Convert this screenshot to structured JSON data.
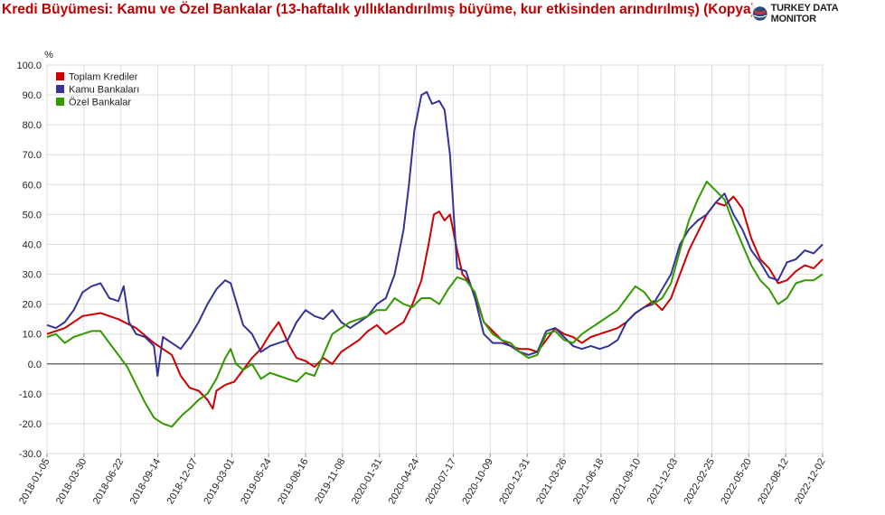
{
  "title": "Kredi Büyümesi: Kamu ve Özel Bankalar (13-haftalık yıllıklandırılmış büyüme, kur etkisinden arındırılmış) (Kopya)",
  "logo_text": "TURKEY DATA MONITOR",
  "logo_icon": "globe-logo-icon",
  "colors": {
    "toplam": "#cc0000",
    "kamu": "#333399",
    "ozel": "#339900"
  },
  "chart_data": {
    "type": "line",
    "ylabel": "%",
    "ylim": [
      -30,
      100
    ],
    "yticks": [
      "100.0",
      "90.0",
      "80.0",
      "70.0",
      "60.0",
      "50.0",
      "40.0",
      "30.0",
      "20.0",
      "10.0",
      "0.0",
      "-10.0",
      "-20.0",
      "-30.0"
    ],
    "xlabels": [
      "2018-01-05",
      "2018-03-30",
      "2018-06-22",
      "2018-09-14",
      "2018-12-07",
      "2019-03-01",
      "2019-05-24",
      "2019-08-16",
      "2019-11-08",
      "2020-01-31",
      "2020-04-24",
      "2020-07-17",
      "2020-10-09",
      "2020-12-31",
      "2021-03-26",
      "2021-06-18",
      "2021-09-10",
      "2021-12-03",
      "2022-02-25",
      "2022-05-20",
      "2022-08-12",
      "2022-12-02"
    ],
    "grid": true,
    "legend_position": "top-left",
    "series": [
      {
        "name": "Toplam Krediler",
        "color": "#cc0000",
        "points": [
          [
            0,
            10
          ],
          [
            1,
            12
          ],
          [
            2,
            16
          ],
          [
            3,
            17
          ],
          [
            4,
            15
          ],
          [
            5,
            12
          ],
          [
            6,
            7
          ],
          [
            7,
            3
          ],
          [
            7.5,
            -4
          ],
          [
            8,
            -8
          ],
          [
            8.5,
            -9
          ],
          [
            9,
            -12
          ],
          [
            9.3,
            -15
          ],
          [
            9.5,
            -9
          ],
          [
            10,
            -7
          ],
          [
            10.5,
            -6
          ],
          [
            11,
            -2
          ],
          [
            11.5,
            2
          ],
          [
            12,
            5
          ],
          [
            12.5,
            10
          ],
          [
            13,
            14
          ],
          [
            13.3,
            10
          ],
          [
            13.6,
            6
          ],
          [
            14,
            2
          ],
          [
            14.5,
            1
          ],
          [
            15,
            -1
          ],
          [
            15.5,
            2
          ],
          [
            16,
            0
          ],
          [
            16.5,
            4
          ],
          [
            17,
            6
          ],
          [
            17.5,
            8
          ],
          [
            18,
            11
          ],
          [
            18.5,
            13
          ],
          [
            19,
            10
          ],
          [
            19.5,
            12
          ],
          [
            20,
            14
          ],
          [
            20.5,
            20
          ],
          [
            21,
            28
          ],
          [
            21.4,
            40
          ],
          [
            21.7,
            50
          ],
          [
            22,
            51
          ],
          [
            22.3,
            48
          ],
          [
            22.6,
            50
          ],
          [
            23,
            38
          ],
          [
            23.3,
            30
          ],
          [
            23.6,
            28
          ],
          [
            24,
            23
          ],
          [
            24.5,
            14
          ],
          [
            25,
            11
          ],
          [
            25.5,
            8
          ],
          [
            26,
            6
          ],
          [
            26.5,
            5
          ],
          [
            27,
            5
          ],
          [
            27.5,
            4
          ],
          [
            28,
            8
          ],
          [
            28.5,
            12
          ],
          [
            29,
            10
          ],
          [
            29.5,
            9
          ],
          [
            30,
            7
          ],
          [
            30.5,
            9
          ],
          [
            31,
            10
          ],
          [
            31.5,
            11
          ],
          [
            32,
            12
          ],
          [
            32.5,
            14
          ],
          [
            33,
            17
          ],
          [
            33.5,
            19
          ],
          [
            34,
            21
          ],
          [
            34.5,
            18
          ],
          [
            35,
            22
          ],
          [
            35.5,
            30
          ],
          [
            36,
            38
          ],
          [
            36.5,
            44
          ],
          [
            37,
            50
          ],
          [
            37.5,
            54
          ],
          [
            38,
            53
          ],
          [
            38.5,
            56
          ],
          [
            39,
            52
          ],
          [
            39.5,
            42
          ],
          [
            40,
            35
          ],
          [
            40.5,
            32
          ],
          [
            41,
            27
          ],
          [
            41.5,
            28
          ],
          [
            42,
            31
          ],
          [
            42.5,
            33
          ],
          [
            43,
            32
          ],
          [
            43.5,
            35
          ]
        ]
      },
      {
        "name": "Kamu Bankaları",
        "color": "#333399",
        "points": [
          [
            0,
            13
          ],
          [
            0.5,
            12
          ],
          [
            1,
            14
          ],
          [
            1.5,
            18
          ],
          [
            2,
            24
          ],
          [
            2.5,
            26
          ],
          [
            3,
            27
          ],
          [
            3.5,
            22
          ],
          [
            4,
            21
          ],
          [
            4.3,
            26
          ],
          [
            4.6,
            14
          ],
          [
            5,
            10
          ],
          [
            5.5,
            9
          ],
          [
            6,
            6
          ],
          [
            6.2,
            -4
          ],
          [
            6.5,
            9
          ],
          [
            7,
            7
          ],
          [
            7.5,
            5
          ],
          [
            8,
            9
          ],
          [
            8.5,
            14
          ],
          [
            9,
            20
          ],
          [
            9.5,
            25
          ],
          [
            10,
            28
          ],
          [
            10.3,
            27
          ],
          [
            10.6,
            21
          ],
          [
            11,
            13
          ],
          [
            11.5,
            10
          ],
          [
            12,
            4
          ],
          [
            12.5,
            6
          ],
          [
            13,
            7
          ],
          [
            13.5,
            8
          ],
          [
            14,
            14
          ],
          [
            14.5,
            18
          ],
          [
            15,
            16
          ],
          [
            15.5,
            15
          ],
          [
            16,
            18
          ],
          [
            16.5,
            14
          ],
          [
            17,
            12
          ],
          [
            17.5,
            14
          ],
          [
            18,
            16
          ],
          [
            18.5,
            20
          ],
          [
            19,
            22
          ],
          [
            19.5,
            30
          ],
          [
            20,
            45
          ],
          [
            20.3,
            60
          ],
          [
            20.6,
            78
          ],
          [
            21,
            90
          ],
          [
            21.3,
            91
          ],
          [
            21.6,
            87
          ],
          [
            22,
            88
          ],
          [
            22.3,
            85
          ],
          [
            22.6,
            70
          ],
          [
            23,
            32
          ],
          [
            23.5,
            31
          ],
          [
            24,
            22
          ],
          [
            24.5,
            10
          ],
          [
            25,
            7
          ],
          [
            25.5,
            7
          ],
          [
            26,
            6
          ],
          [
            26.5,
            4
          ],
          [
            27,
            3
          ],
          [
            27.5,
            4
          ],
          [
            28,
            11
          ],
          [
            28.5,
            12
          ],
          [
            29,
            9
          ],
          [
            29.5,
            6
          ],
          [
            30,
            5
          ],
          [
            30.5,
            6
          ],
          [
            31,
            5
          ],
          [
            31.5,
            6
          ],
          [
            32,
            8
          ],
          [
            32.5,
            14
          ],
          [
            33,
            17
          ],
          [
            33.5,
            19
          ],
          [
            34,
            20
          ],
          [
            34.5,
            25
          ],
          [
            35,
            30
          ],
          [
            35.5,
            40
          ],
          [
            36,
            45
          ],
          [
            36.5,
            48
          ],
          [
            37,
            50
          ],
          [
            37.5,
            54
          ],
          [
            38,
            57
          ],
          [
            38.5,
            50
          ],
          [
            39,
            45
          ],
          [
            39.5,
            38
          ],
          [
            40,
            34
          ],
          [
            40.5,
            29
          ],
          [
            41,
            28
          ],
          [
            41.5,
            34
          ],
          [
            42,
            35
          ],
          [
            42.5,
            38
          ],
          [
            43,
            37
          ],
          [
            43.5,
            40
          ]
        ]
      },
      {
        "name": "Özel Bankalar",
        "color": "#339900",
        "points": [
          [
            0,
            9
          ],
          [
            0.5,
            10
          ],
          [
            1,
            7
          ],
          [
            1.5,
            9
          ],
          [
            2,
            10
          ],
          [
            2.5,
            11
          ],
          [
            3,
            11
          ],
          [
            3.5,
            7
          ],
          [
            4,
            3
          ],
          [
            4.5,
            -1
          ],
          [
            5,
            -7
          ],
          [
            5.5,
            -13
          ],
          [
            6,
            -18
          ],
          [
            6.5,
            -20
          ],
          [
            7,
            -21
          ],
          [
            7.3,
            -19
          ],
          [
            7.6,
            -17
          ],
          [
            8,
            -15
          ],
          [
            8.5,
            -12
          ],
          [
            9,
            -10
          ],
          [
            9.5,
            -5
          ],
          [
            10,
            2
          ],
          [
            10.3,
            5
          ],
          [
            10.6,
            0
          ],
          [
            11,
            -2
          ],
          [
            11.5,
            0
          ],
          [
            12,
            -5
          ],
          [
            12.5,
            -3
          ],
          [
            13,
            -4
          ],
          [
            13.5,
            -5
          ],
          [
            14,
            -6
          ],
          [
            14.5,
            -3
          ],
          [
            15,
            -4
          ],
          [
            15.5,
            3
          ],
          [
            16,
            10
          ],
          [
            16.5,
            12
          ],
          [
            17,
            14
          ],
          [
            17.5,
            15
          ],
          [
            18,
            16
          ],
          [
            18.5,
            18
          ],
          [
            19,
            18
          ],
          [
            19.5,
            22
          ],
          [
            20,
            20
          ],
          [
            20.5,
            19
          ],
          [
            21,
            22
          ],
          [
            21.5,
            22
          ],
          [
            22,
            20
          ],
          [
            22.5,
            25
          ],
          [
            23,
            29
          ],
          [
            23.5,
            28
          ],
          [
            24,
            24
          ],
          [
            24.5,
            14
          ],
          [
            25,
            10
          ],
          [
            25.5,
            8
          ],
          [
            26,
            7
          ],
          [
            26.5,
            4
          ],
          [
            27,
            2
          ],
          [
            27.5,
            3
          ],
          [
            28,
            10
          ],
          [
            28.5,
            11
          ],
          [
            29,
            8
          ],
          [
            29.5,
            7
          ],
          [
            30,
            10
          ],
          [
            30.5,
            12
          ],
          [
            31,
            14
          ],
          [
            31.5,
            16
          ],
          [
            32,
            18
          ],
          [
            32.5,
            22
          ],
          [
            33,
            26
          ],
          [
            33.5,
            24
          ],
          [
            34,
            20
          ],
          [
            34.5,
            22
          ],
          [
            35,
            27
          ],
          [
            35.5,
            38
          ],
          [
            36,
            48
          ],
          [
            36.5,
            55
          ],
          [
            37,
            61
          ],
          [
            37.5,
            58
          ],
          [
            38,
            55
          ],
          [
            38.5,
            47
          ],
          [
            39,
            40
          ],
          [
            39.5,
            33
          ],
          [
            40,
            28
          ],
          [
            40.5,
            25
          ],
          [
            41,
            20
          ],
          [
            41.5,
            22
          ],
          [
            42,
            27
          ],
          [
            42.5,
            28
          ],
          [
            43,
            28
          ],
          [
            43.5,
            30
          ]
        ]
      }
    ]
  }
}
